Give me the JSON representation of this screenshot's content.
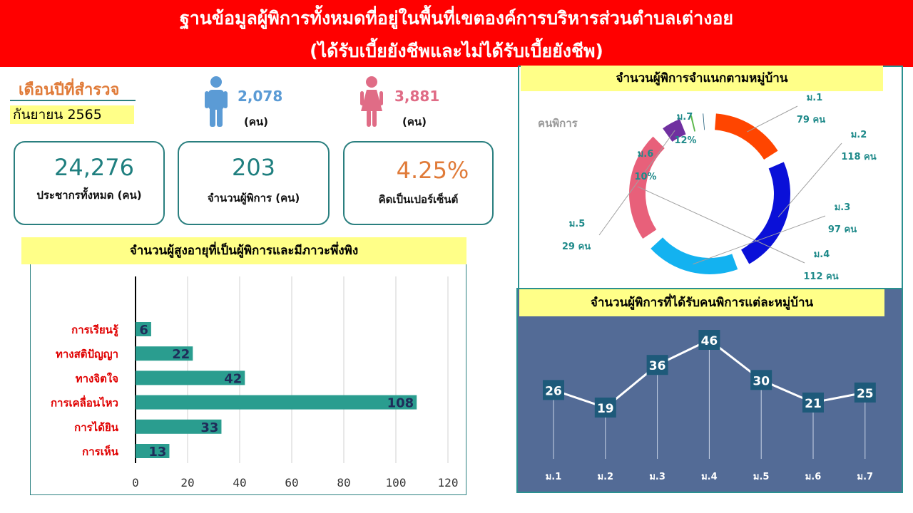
{
  "header": {
    "title_line1": "ฐานข้อมูลผู้พิการทั้งหมดที่อยู่ในพื้นที่เขตองค์การบริหารส่วนตำบลเต่างอย",
    "title_line2": "(ได้รับเบี้ยยังชีพและไม่ได้รับเบี้ยยังชีพ)"
  },
  "survey": {
    "label": "เดือนปีที่สำรวจ",
    "value": "กันยายน 2565"
  },
  "gender": {
    "male": {
      "value": "2,078",
      "unit": "(คน)",
      "color": "#5b9bd5"
    },
    "female": {
      "value": "3,881",
      "unit": "(คน)",
      "color": "#e06c86"
    }
  },
  "stats": [
    {
      "value": "24,276",
      "label": "ประชากรทั้งหมด (คน)",
      "color": "#1f7f7f"
    },
    {
      "value": "203",
      "label": "จำนวนผู้พิการ (คน)",
      "color": "#1f7f7f"
    },
    {
      "value": "4.25%",
      "label": "คิดเป็นเปอร์เซ็นต์",
      "color": "#e07b39"
    }
  ],
  "chart_data": [
    {
      "type": "bar",
      "orientation": "horizontal",
      "title": "จำนวนผู้สูงอายุที่เป็นผู้พิการและมีภาวะพึ่งพิง",
      "categories": [
        "การเรียนรู้",
        "ทางสติปัญญา",
        "ทางจิตใจ",
        "การเคลื่อนไหว",
        "การได้ยิน",
        "การเห็น"
      ],
      "values": [
        6,
        22,
        42,
        108,
        33,
        13
      ],
      "xlim": [
        0,
        120
      ],
      "ticks": [
        0,
        20,
        40,
        60,
        80,
        100,
        120
      ],
      "grid": true,
      "bar_color": "#2a9d8f",
      "label_color": "#e00000",
      "value_color": "#1f2d5a"
    },
    {
      "type": "pie",
      "title": "จำนวนผู้พิการจำแนกตามหมู่บ้าน",
      "series_label": "คนพิการ",
      "slices": [
        {
          "name": "ม.1",
          "value": 79,
          "label": "79 คน",
          "color": "#ff4500"
        },
        {
          "name": "ม.2",
          "value": 118,
          "label": "118 คน",
          "color": "#0a10d8"
        },
        {
          "name": "ม.3",
          "value": 97,
          "label": "97 คน",
          "color": "#13b2f0"
        },
        {
          "name": "ม.4",
          "value": 112,
          "label": "112 คน",
          "color": "#e8607a"
        },
        {
          "name": "ม.5",
          "value": 29,
          "label": "29 คน",
          "color": "#7030a0"
        },
        {
          "name": "ม.6",
          "value": 10,
          "label": "10%",
          "color": "#5cb84c"
        },
        {
          "name": "ม.7",
          "value": 12,
          "label": "12%",
          "color": "#1a5a78"
        }
      ]
    },
    {
      "type": "line",
      "title": "จำนวนผู้พิการที่ได้รับคนพิการแต่ละหมู่บ้าน",
      "categories": [
        "ม.1",
        "ม.2",
        "ม.3",
        "ม.4",
        "ม.5",
        "ม.6",
        "ม.7"
      ],
      "values": [
        26,
        19,
        36,
        46,
        30,
        21,
        25
      ],
      "line_color": "#ffffff",
      "label_bg": "#1e5a7a"
    }
  ]
}
